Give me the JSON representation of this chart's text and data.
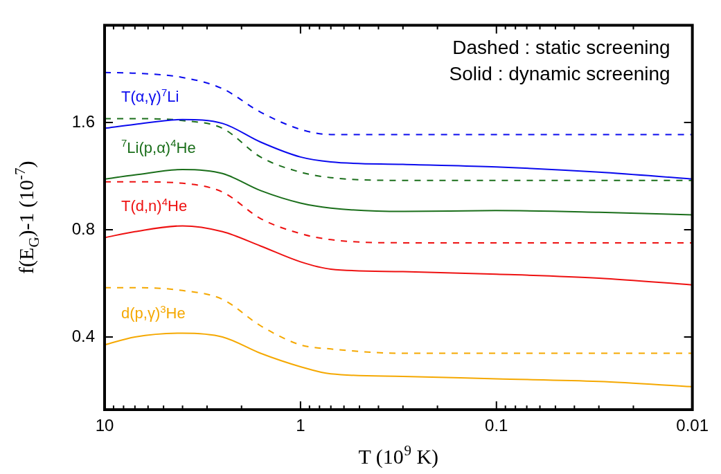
{
  "chart_data": {
    "type": "line",
    "xlabel": "T (10$^{9}$ K)",
    "ylabel": "f(E$_{G}$)-1 (10$^{-7}$)",
    "log": "xy",
    "marker": "none",
    "x": [
      10,
      7,
      4,
      2.5,
      1.6,
      1,
      0.7,
      0.3,
      0.1,
      0.03,
      0.01
    ],
    "xlim": [
      10,
      0.01
    ],
    "xticks": [
      10,
      {
        "value": 9,
        "label": null
      },
      {
        "value": 8,
        "label": null
      },
      {
        "value": 7,
        "label": null
      },
      {
        "value": 6,
        "label": null
      },
      {
        "value": 5,
        "label": null
      },
      {
        "value": 4,
        "label": null
      },
      {
        "value": 3,
        "label": null
      },
      {
        "value": 2,
        "label": null
      },
      1,
      {
        "value": 0.9,
        "label": null
      },
      {
        "value": 0.8,
        "label": null
      },
      {
        "value": 0.7,
        "label": null
      },
      {
        "value": 0.6,
        "label": null
      },
      {
        "value": 0.5,
        "label": null
      },
      {
        "value": 0.4,
        "label": null
      },
      {
        "value": 0.3,
        "label": null
      },
      {
        "value": 0.2,
        "label": null
      },
      0.1,
      {
        "value": 0.09,
        "label": null
      },
      {
        "value": 0.08,
        "label": null
      },
      {
        "value": 0.07,
        "label": null
      },
      {
        "value": 0.06,
        "label": null
      },
      {
        "value": 0.05,
        "label": null
      },
      {
        "value": 0.04,
        "label": null
      },
      {
        "value": 0.03,
        "label": null
      },
      {
        "value": 0.02,
        "label": null
      },
      0.01
    ],
    "ylim": [
      0.25,
      3
    ],
    "yticks": [
      0.4,
      0.8,
      1.6
    ],
    "series": [
      {
        "color": "#0a0aee",
        "line_style": "dashed",
        "values": [
          2.21,
          2.2,
          2.14,
          1.99,
          1.71,
          1.53,
          1.48,
          1.48,
          1.48,
          1.48,
          1.48
        ]
      },
      {
        "name": "T(α,γ)$^{7}$Li",
        "color": "#0a0aee",
        "line_style": "solid",
        "values": [
          1.54,
          1.58,
          1.63,
          1.59,
          1.41,
          1.28,
          1.24,
          1.22,
          1.2,
          1.16,
          1.11
        ]
      },
      {
        "color": "#1a6e1a",
        "line_style": "dashed",
        "values": [
          1.64,
          1.64,
          1.62,
          1.54,
          1.28,
          1.16,
          1.12,
          1.1,
          1.1,
          1.1,
          1.1
        ]
      },
      {
        "name": "$^{7}$Li(p,α)$^{4}$He",
        "color": "#1a6e1a",
        "line_style": "solid",
        "values": [
          1.11,
          1.14,
          1.18,
          1.15,
          1.03,
          0.95,
          0.92,
          0.9,
          0.905,
          0.895,
          0.88
        ]
      },
      {
        "color": "#ee1111",
        "line_style": "dashed",
        "values": [
          1.09,
          1.09,
          1.08,
          1.02,
          0.86,
          0.78,
          0.75,
          0.735,
          0.735,
          0.735,
          0.735
        ]
      },
      {
        "name": "T(d,n)$^{4}$He",
        "color": "#ee1111",
        "line_style": "solid",
        "values": [
          0.76,
          0.79,
          0.82,
          0.79,
          0.72,
          0.65,
          0.62,
          0.61,
          0.6,
          0.585,
          0.56
        ]
      },
      {
        "color": "#f5a800",
        "line_style": "dashed",
        "values": [
          0.55,
          0.55,
          0.54,
          0.51,
          0.43,
          0.38,
          0.37,
          0.36,
          0.36,
          0.36,
          0.36
        ]
      },
      {
        "name": "d(p,γ)$^{3}$He",
        "color": "#f5a800",
        "line_style": "solid",
        "values": [
          0.38,
          0.4,
          0.41,
          0.4,
          0.36,
          0.33,
          0.315,
          0.31,
          0.305,
          0.3,
          0.29
        ]
      }
    ],
    "annotations": [
      "Dashed : static screening",
      "Solid : dynamic screening"
    ]
  }
}
